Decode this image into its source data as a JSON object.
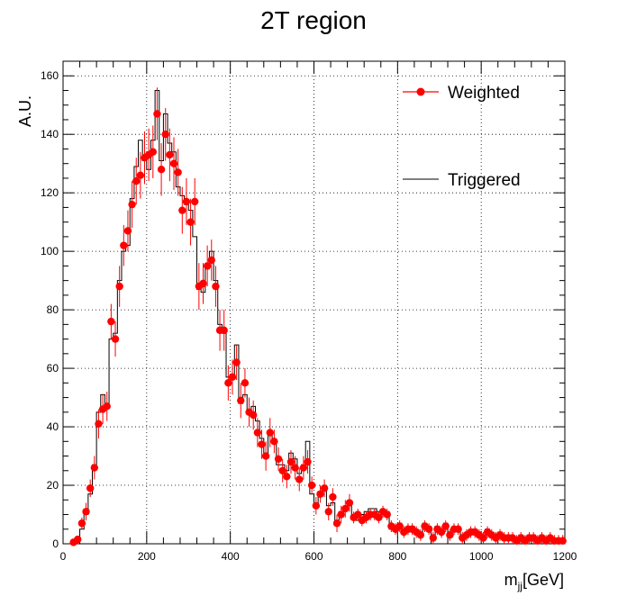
{
  "chart_data": {
    "type": "histogram",
    "title": "2T region",
    "xlabel_main": "m",
    "xlabel_sub": "jj",
    "xlabel_unit": "[GeV]",
    "ylabel": "A.U.",
    "xlim": [
      0,
      1200
    ],
    "ylim": [
      0,
      165
    ],
    "x_ticks": [
      0,
      200,
      400,
      600,
      800,
      1000,
      1200
    ],
    "y_ticks": [
      0,
      20,
      40,
      60,
      80,
      100,
      120,
      140,
      160
    ],
    "grid": true,
    "legend_position": "top-right",
    "bin_width": 10,
    "bin_start": 20,
    "series": [
      {
        "name": "Weighted",
        "style": "points-with-errors",
        "color": "#ff0000",
        "x": [
          25,
          35,
          45,
          55,
          65,
          75,
          85,
          95,
          105,
          115,
          125,
          135,
          145,
          155,
          165,
          175,
          185,
          195,
          205,
          215,
          225,
          235,
          245,
          255,
          265,
          275,
          285,
          295,
          305,
          315,
          325,
          335,
          345,
          355,
          365,
          375,
          385,
          395,
          405,
          415,
          425,
          435,
          445,
          455,
          465,
          475,
          485,
          495,
          505,
          515,
          525,
          535,
          545,
          555,
          565,
          575,
          585,
          595,
          605,
          615,
          625,
          635,
          645,
          655,
          665,
          675,
          685,
          695,
          705,
          715,
          725,
          735,
          745,
          755,
          765,
          775,
          785,
          795,
          805,
          815,
          825,
          835,
          845,
          855,
          865,
          875,
          885,
          895,
          905,
          915,
          925,
          935,
          945,
          955,
          965,
          975,
          985,
          995,
          1005,
          1015,
          1025,
          1035,
          1045,
          1055,
          1065,
          1075,
          1085,
          1095,
          1105,
          1115,
          1125,
          1135,
          1145,
          1155,
          1165,
          1175,
          1185,
          1195
        ],
        "y": [
          0.5,
          1.5,
          7,
          11,
          19,
          26,
          41,
          46,
          47,
          76,
          70,
          88,
          102,
          107,
          116,
          124,
          126,
          132,
          133,
          134,
          147,
          128,
          140,
          133,
          130,
          127,
          114,
          117,
          110,
          117,
          88,
          89,
          95,
          97,
          88,
          73,
          73,
          55,
          57,
          62,
          49,
          55,
          45,
          44,
          38,
          34,
          30,
          38,
          35,
          29,
          25,
          23,
          28,
          26,
          22,
          26,
          28,
          20,
          13,
          17,
          19,
          11,
          16,
          7,
          10,
          12,
          14,
          9,
          10,
          8,
          9,
          10,
          10,
          9,
          11,
          10,
          6,
          5,
          6,
          4,
          5,
          5,
          4,
          3,
          6,
          5,
          2,
          5,
          4,
          6,
          3,
          5,
          5,
          2,
          3,
          4,
          4,
          3,
          2,
          4,
          3,
          2,
          3,
          2,
          2,
          2,
          1,
          2,
          1,
          2,
          2,
          1,
          2,
          1,
          2,
          1,
          1,
          1
        ],
        "yerr": [
          0.5,
          1,
          2,
          3,
          3,
          4,
          5,
          5,
          5,
          6,
          6,
          7,
          7,
          7,
          8,
          8,
          8,
          9,
          9,
          9,
          9,
          9,
          9,
          9,
          9,
          8,
          8,
          8,
          8,
          8,
          8,
          7,
          7,
          7,
          7,
          7,
          7,
          6,
          6,
          6,
          6,
          5,
          5,
          5,
          5,
          5,
          5,
          5,
          4,
          4,
          4,
          4,
          4,
          4,
          4,
          4,
          4,
          3,
          3,
          3,
          3,
          3,
          3,
          3,
          3,
          3,
          3,
          2,
          2,
          2,
          2,
          2,
          2,
          2,
          2,
          2,
          2,
          2,
          2,
          2,
          2,
          2,
          2,
          2,
          2,
          2,
          2,
          2,
          2,
          2,
          2,
          2,
          2,
          2,
          2,
          2,
          2,
          2,
          2,
          2,
          2,
          2,
          2,
          2,
          2,
          2,
          2,
          2,
          2,
          2,
          2,
          2,
          2,
          2,
          2,
          2,
          2,
          2
        ]
      },
      {
        "name": "Triggered",
        "style": "step-histogram",
        "color": "#000000",
        "y": [
          1,
          2,
          5,
          10,
          17,
          27,
          45,
          51,
          48,
          70,
          72,
          90,
          100,
          102,
          118,
          129,
          138,
          131,
          128,
          138,
          155,
          131,
          147,
          137,
          134,
          122,
          119,
          116,
          114,
          105,
          87,
          86,
          94,
          100,
          90,
          75,
          72,
          57,
          58,
          68,
          48,
          51,
          45,
          47,
          42,
          36,
          31,
          38,
          35,
          27,
          27,
          25,
          31,
          29,
          24,
          27,
          35,
          17,
          14,
          17,
          18,
          13,
          14,
          7,
          11,
          12,
          13,
          9,
          8,
          10,
          11,
          12,
          12,
          11,
          10,
          11,
          5,
          5,
          7,
          5,
          5,
          6,
          4,
          4,
          7,
          6,
          3,
          6,
          4,
          7,
          4,
          5,
          5,
          3,
          3,
          4,
          5,
          3,
          3,
          5,
          3,
          3,
          4,
          2,
          3,
          2,
          2,
          3,
          2,
          3,
          3,
          2,
          3,
          2,
          2,
          1,
          1,
          1
        ]
      }
    ]
  }
}
